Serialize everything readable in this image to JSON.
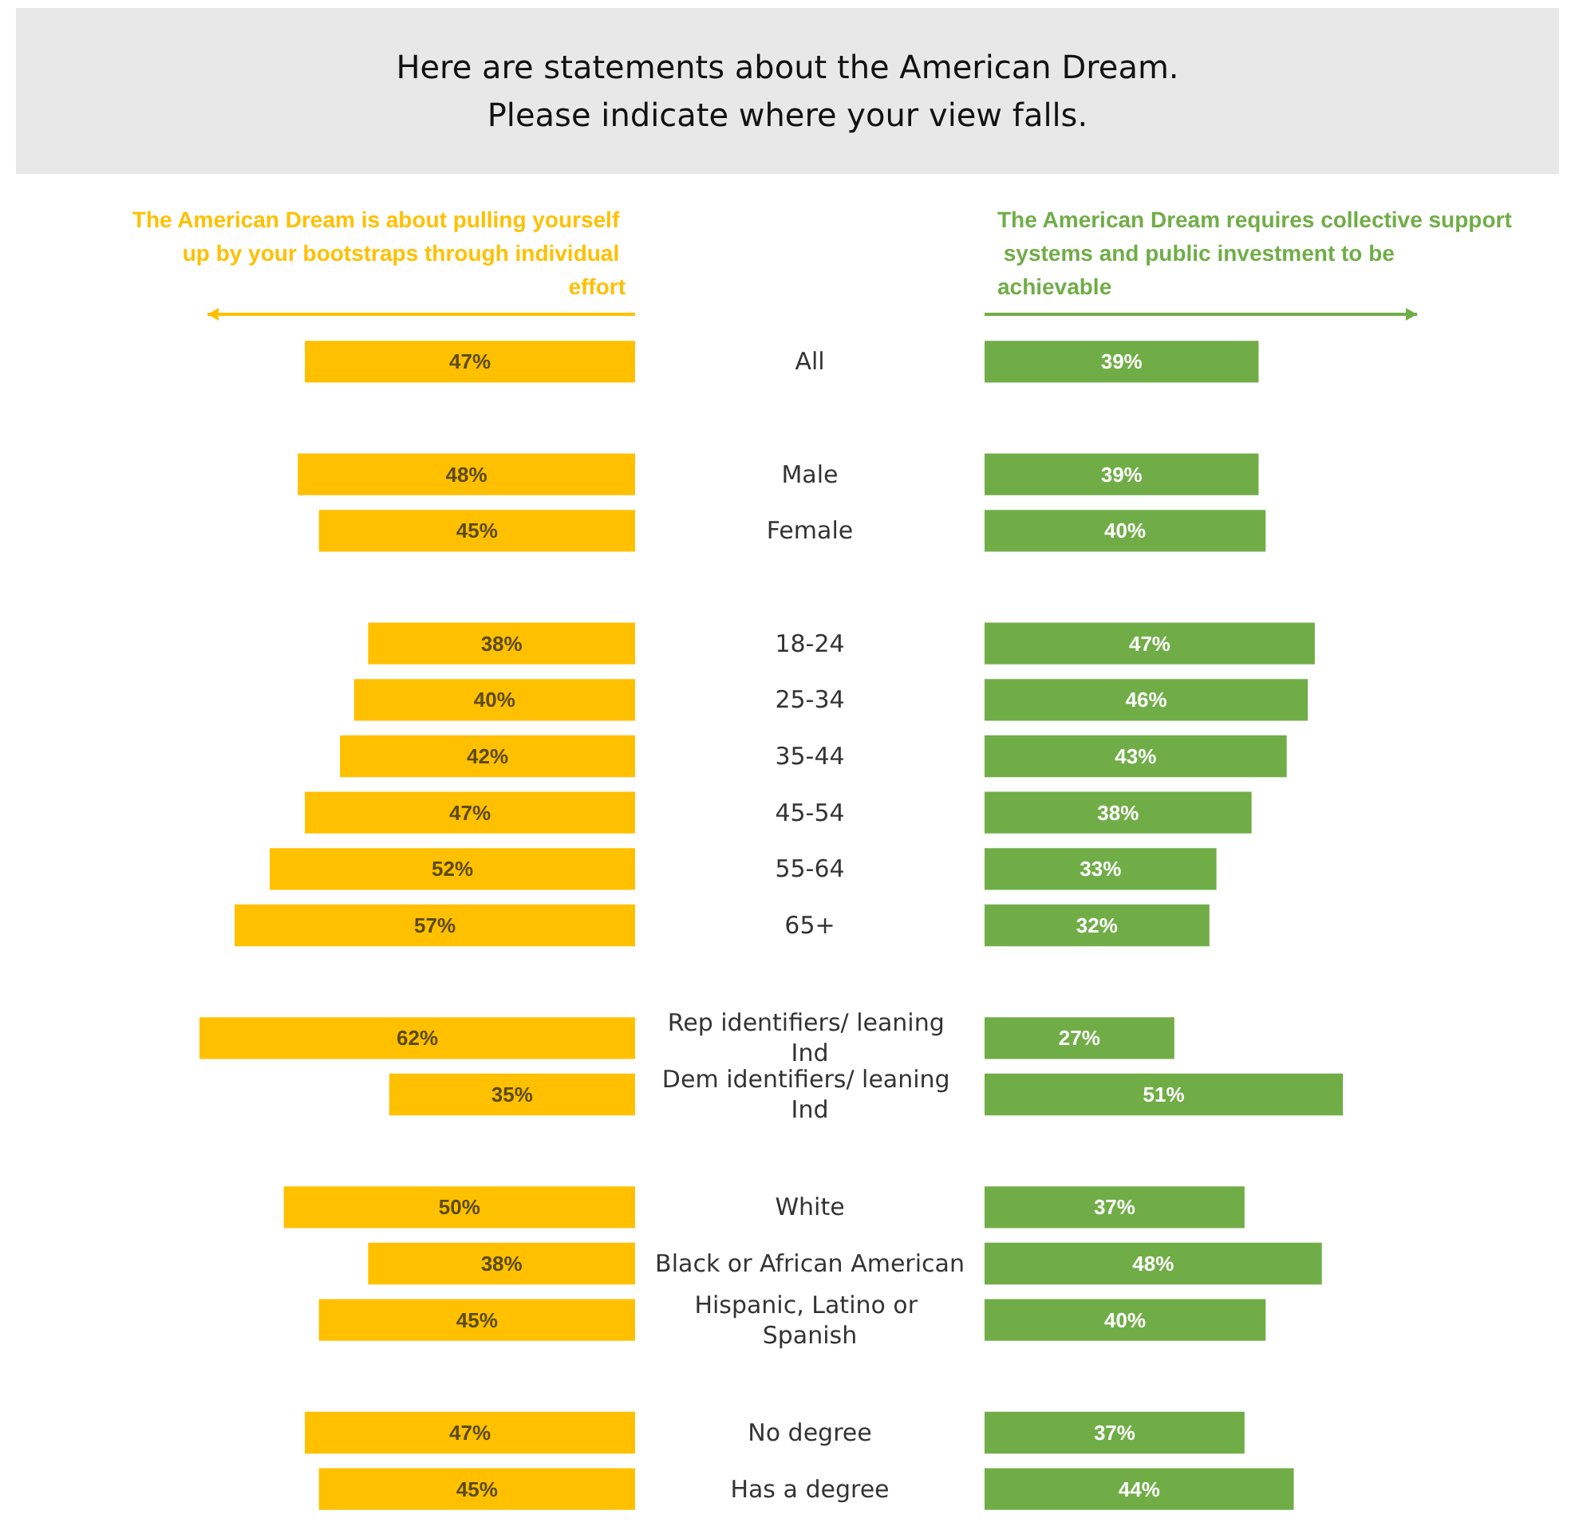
{
  "chart_data": [
    {
      "type": "bar",
      "orientation": "horizontal",
      "title": "Here are statements about the American Dream.\nPlease indicate where your view falls.",
      "tick_labels": "y",
      "xlim": [
        62,
        0
      ],
      "categories": [
        "All",
        null,
        "Male",
        "Female",
        null,
        "18-24",
        "25-34",
        "35-44",
        "45-54",
        "55-64",
        "65+",
        null,
        "Rep identifiers/ leaning Ind",
        "Dem identifiers/ leaning Ind",
        null,
        "White",
        "Black or African American",
        "Hispanic, Latino or Spanish",
        null,
        "No degree",
        "Has a degree"
      ],
      "series": [
        {
          "name": "The American Dream is about pulling yourself up by your bootstraps through individual effort",
          "color": "#ffc000",
          "values": [
            47,
            null,
            48,
            45,
            null,
            38,
            40,
            42,
            47,
            52,
            57,
            null,
            62,
            35,
            null,
            50,
            38,
            45,
            null,
            47,
            45
          ],
          "value_labels": [
            "47%",
            null,
            "48%",
            "45%",
            null,
            "38%",
            "40%",
            "42%",
            "47%",
            "52%",
            "57%",
            null,
            "62%",
            "35%",
            null,
            "50%",
            "38%",
            "45%",
            null,
            "47%",
            "45%"
          ]
        }
      ]
    },
    {
      "type": "bar",
      "orientation": "horizontal",
      "tick_labels": false,
      "xlim": [
        0,
        62
      ],
      "categories": [
        "All",
        null,
        "Male",
        "Female",
        null,
        "18-24",
        "25-34",
        "35-44",
        "45-54",
        "55-64",
        "65+",
        null,
        "Rep identifiers/ leaning Ind",
        "Dem identifiers/ leaning Ind",
        null,
        "White",
        "Black or African American",
        "Hispanic, Latino or Spanish",
        null,
        "No degree",
        "Has a degree"
      ],
      "series": [
        {
          "name": "The American Dream requires collective support systems and public investment to be achievable",
          "color": "#70ad47",
          "values": [
            39,
            null,
            39,
            40,
            null,
            47,
            46,
            43,
            38,
            33,
            32,
            null,
            27,
            51,
            null,
            37,
            48,
            40,
            null,
            37,
            44
          ],
          "value_labels": [
            "39%",
            null,
            "39%",
            "40%",
            null,
            "47%",
            "46%",
            "43%",
            "38%",
            "33%",
            "32%",
            null,
            "27%",
            "51%",
            null,
            "37%",
            "48%",
            "40%",
            null,
            "37%",
            "44%"
          ]
        }
      ]
    }
  ]
}
